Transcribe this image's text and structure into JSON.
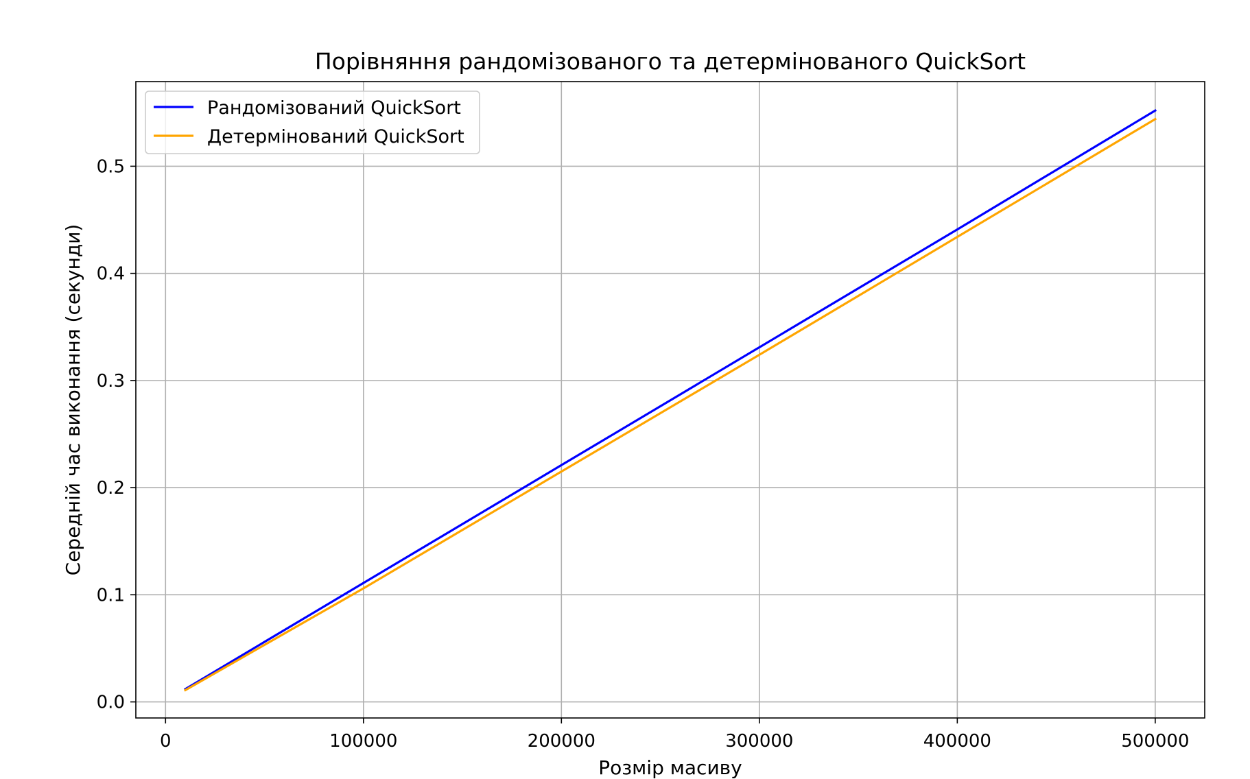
{
  "chart_data": {
    "type": "line",
    "title": "Порівняння рандомізованого та детермінованого QuickSort",
    "xlabel": "Розмір масиву",
    "ylabel": "Середній час виконання (секунди)",
    "xlim": [
      -15000,
      525000
    ],
    "ylim": [
      -0.015,
      0.579
    ],
    "xticks": [
      0,
      100000,
      200000,
      300000,
      400000,
      500000
    ],
    "xtick_labels": [
      "0",
      "100000",
      "200000",
      "300000",
      "400000",
      "500000"
    ],
    "yticks": [
      0.0,
      0.1,
      0.2,
      0.3,
      0.4,
      0.5
    ],
    "ytick_labels": [
      "0.0",
      "0.1",
      "0.2",
      "0.3",
      "0.4",
      "0.5"
    ],
    "grid": true,
    "legend_position": "upper-left",
    "series": [
      {
        "name": "Рандомізований QuickSort",
        "color": "#0000ff",
        "x": [
          10000,
          100000,
          200000,
          300000,
          400000,
          500000
        ],
        "y": [
          0.012,
          0.111,
          0.221,
          0.331,
          0.441,
          0.552
        ]
      },
      {
        "name": "Детермінований QuickSort",
        "color": "#ffa500",
        "x": [
          10000,
          100000,
          200000,
          300000,
          400000,
          500000
        ],
        "y": [
          0.011,
          0.106,
          0.215,
          0.324,
          0.434,
          0.544
        ]
      }
    ]
  }
}
